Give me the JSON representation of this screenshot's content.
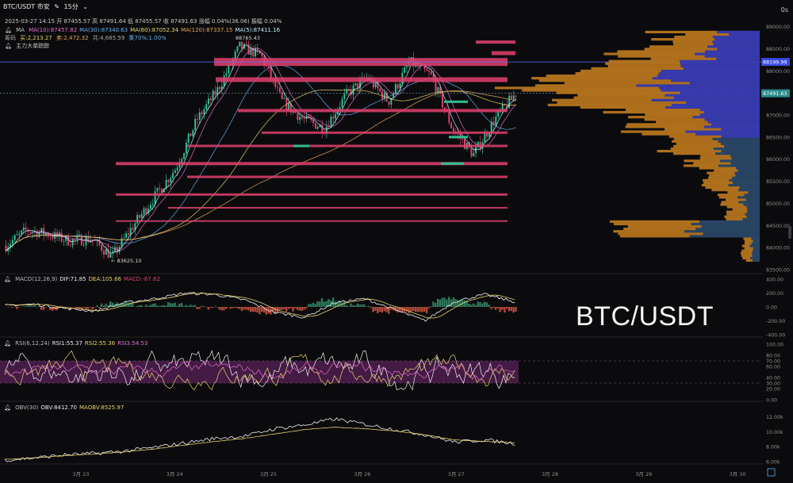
{
  "header": {
    "symbol": "BTC/USDT 市安",
    "interval": "15分",
    "countdown": "0s",
    "ohlc_line": "2025-03-27 14:15  开 87455.57  高 87491.64  低 87455.57  收 87491.63  涨幅 0.04%(36.06)  振幅 0.04%",
    "ma_line": {
      "name": "MA",
      "items": [
        {
          "label": "MA(10):87457.82",
          "color": "#e26fcf"
        },
        {
          "label": "MA(30):87340.63",
          "color": "#5fb0ee"
        },
        {
          "label": "MA(60):87052.34",
          "color": "#e7d36a"
        },
        {
          "label": "MA(120):87337.15",
          "color": "#e7a55e"
        },
        {
          "label": "MA(5):87411.16",
          "color": "#c6f0ff"
        }
      ]
    },
    "chips_line": {
      "prefix": "筹码",
      "buy": "买:2,213.27",
      "sell": "卖:2,472.32",
      "total": "共:4,685.59",
      "ratio": "集70%:1.00%"
    },
    "tracker_label": "主力大单踪踪"
  },
  "watermark": "BTC/USDT",
  "colors": {
    "up": "#2fbf8f",
    "down": "#e0416e",
    "price_line": "#5f6fff",
    "vp_up": "#c07a1e",
    "vp_down": "#3b3fb8",
    "rsi_band": "#4a1d4a",
    "macd_up": "#2e7a5c",
    "macd_down": "#b34a3a"
  },
  "annotations": {
    "high_label": "88765.43",
    "low_label": "← 83625.10"
  },
  "price_axis": {
    "ticks": [
      "89000.00",
      "88500.00",
      "88000.00",
      "87500.00",
      "87000.00",
      "86500.00",
      "86000.00",
      "85500.00",
      "85000.00",
      "84500.00",
      "84000.00",
      "83500.00"
    ],
    "highlight_tags": [
      "88199.99",
      "87491.63"
    ]
  },
  "macd_panel": {
    "legend": [
      "MACD(12,26,9)",
      "DIF:71.85",
      "DEA:105.66",
      "MACD:-67.62"
    ],
    "ticks": [
      "400.00",
      "200.00",
      "0.00",
      "-200.00",
      "-400.00"
    ]
  },
  "rsi_panel": {
    "legend": [
      "RSI(6,12,24)",
      "RSI1:55.37",
      "RSI2:55.36",
      "RSI3:54.53"
    ],
    "ticks": [
      "100.00",
      "80.00",
      "70.00",
      "60.00",
      "40.00",
      "30.00",
      "20.00",
      "0.00"
    ]
  },
  "obv_panel": {
    "legend": [
      "OBV(30)",
      "OBV:8412.70",
      "MAOBV:8525.97"
    ],
    "ticks": [
      "12.00k",
      "10.00k",
      "8.00k",
      "6.00k"
    ]
  },
  "date_axis": [
    "3月 23",
    "3月 24",
    "3月 25",
    "3月 26",
    "3月 27",
    "3月 28",
    "3月 29",
    "3月 30"
  ],
  "corner_icon": "fullscreen-icon",
  "chart_data": {
    "type": "candlestick",
    "interval": "15m",
    "ylim": [
      83500,
      89100
    ],
    "price_path": [
      [
        "3月 22 12:00",
        84050
      ],
      [
        "3月 22 18:00",
        84400
      ],
      [
        "3月 23 00:00",
        84300
      ],
      [
        "3月 23 06:00",
        84150
      ],
      [
        "3月 23 12:00",
        84200
      ],
      [
        "3月 23 18:00",
        83800
      ],
      [
        "3月 24 00:00",
        84500
      ],
      [
        "3月 24 06:00",
        85150
      ],
      [
        "3月 24 12:00",
        85800
      ],
      [
        "3月 24 18:00",
        86900
      ],
      [
        "3月 25 00:00",
        87600
      ],
      [
        "3月 25 04:00",
        88550
      ],
      [
        "3月 25 08:00",
        88350
      ],
      [
        "3月 25 14:00",
        87300
      ],
      [
        "3月 25 20:00",
        86900
      ],
      [
        "3月 26 02:00",
        86700
      ],
      [
        "3月 26 08:00",
        87450
      ],
      [
        "3月 26 14:00",
        87850
      ],
      [
        "3月 26 20:00",
        87300
      ],
      [
        "3月 27 02:00",
        88200
      ],
      [
        "3月 27 06:00",
        87900
      ],
      [
        "3月 27 09:00",
        86700
      ],
      [
        "3月 27 11:00",
        86100
      ],
      [
        "3月 27 13:00",
        86900
      ],
      [
        "3月 27 14:15",
        87491.63
      ]
    ],
    "macd_ylim": [
      -400,
      400
    ],
    "macd_dif": [
      20,
      40,
      -20,
      -60,
      60,
      120,
      200,
      180,
      100,
      -80,
      -150,
      60,
      120,
      -40,
      -200,
      80,
      180,
      71.85
    ],
    "rsi_ylim": [
      0,
      100
    ],
    "rsi_band": [
      30,
      70
    ],
    "obv_ylim": [
      6000,
      13000
    ],
    "obv": [
      6200,
      6500,
      6900,
      7100,
      7400,
      7900,
      8500,
      9100,
      9400,
      10400,
      10900,
      11700,
      11000,
      10300,
      9600,
      8600,
      8900,
      8412.7
    ],
    "maobv": [
      6300,
      6500,
      6800,
      7000,
      7300,
      7700,
      8200,
      8700,
      9100,
      9700,
      10300,
      10600,
      10400,
      10100,
      9600,
      8900,
      8700,
      8525.97
    ]
  }
}
